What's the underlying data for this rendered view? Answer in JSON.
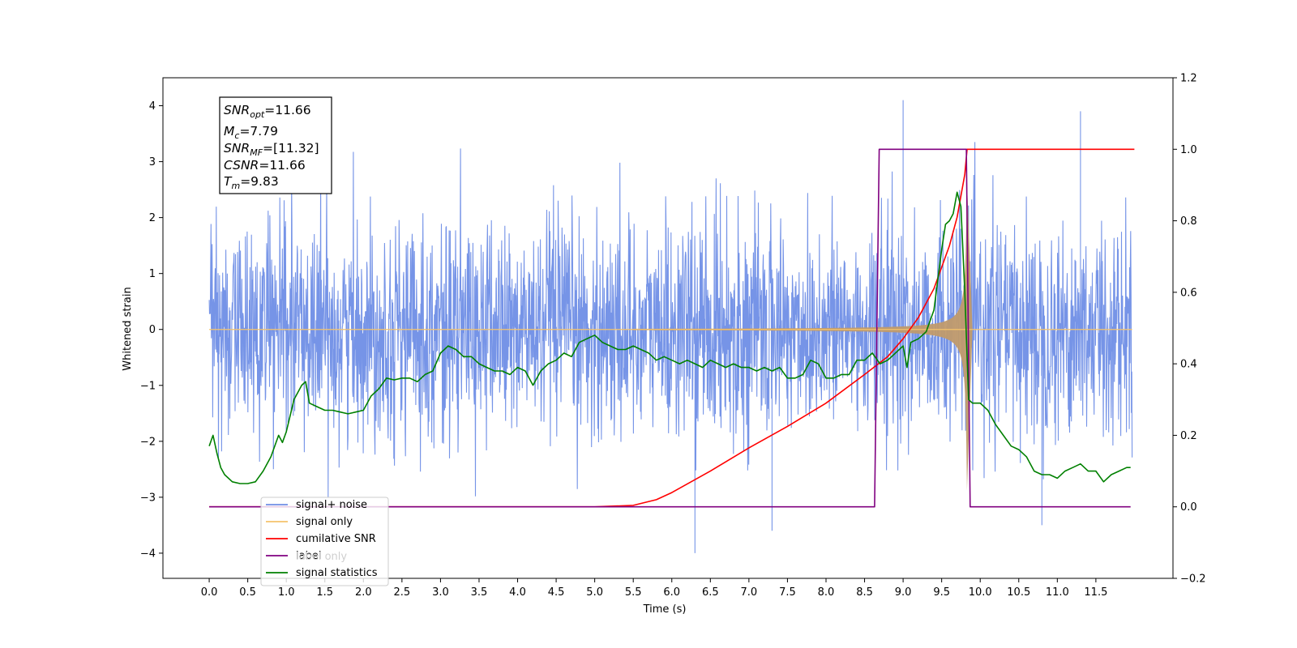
{
  "chart_data": {
    "type": "line",
    "xlabel": "Time (s)",
    "ylabel": "Whitened strain",
    "xlim": [
      -0.6,
      12.5
    ],
    "ylim": [
      -4.45,
      4.5
    ],
    "y2lim": [
      -0.2,
      1.2
    ],
    "x_ticks": [
      "0.0",
      "0.5",
      "1.0",
      "1.5",
      "2.0",
      "2.5",
      "3.0",
      "3.5",
      "4.0",
      "4.5",
      "5.0",
      "5.5",
      "6.0",
      "6.5",
      "7.0",
      "7.5",
      "8.0",
      "8.5",
      "9.0",
      "9.5",
      "10.0",
      "10.5",
      "11.0",
      "11.5"
    ],
    "y_ticks": [
      "4",
      "3",
      "2",
      "1",
      "0",
      "−1",
      "−2",
      "−3",
      "−4"
    ],
    "y2_ticks": [
      "1.2",
      "1.0",
      "0.8",
      "0.6",
      "0.4",
      "0.2",
      "0.0",
      "−0.2"
    ],
    "grid": false,
    "legend_position": "lower-left",
    "colors": {
      "noise": "#6f8ee6",
      "signal": "#f5c36b",
      "signal_fill": "#c09a6b",
      "snr": "#ff0000",
      "label": "#800080",
      "stats": "#008000"
    },
    "annotation": {
      "snr_opt_base": "SNR",
      "snr_opt_sub": "opt",
      "snr_opt_value": "=11.66",
      "mc_base": "M",
      "mc_sub": "c",
      "mc_value": "=7.79",
      "snr_mf_base": "SNR",
      "snr_mf_sub": "MF",
      "snr_mf_value": "=[11.32]",
      "csnr_label": "CSNR",
      "csnr_value": "=11.66",
      "tm_base": "T",
      "tm_sub": "m",
      "tm_value": "=9.83"
    },
    "series": [
      {
        "name": "signal+ noise",
        "axis": "left",
        "noise_envelope": [
          -3.3,
          4.1
        ],
        "spike_points": [
          [
            6.3,
            -4.0
          ],
          [
            9.0,
            4.1
          ],
          [
            11.3,
            3.9
          ],
          [
            7.3,
            -3.6
          ],
          [
            10.8,
            -3.5
          ]
        ]
      },
      {
        "name": "signal only",
        "axis": "left",
        "chirp_start": 5.5,
        "chirp_end": 9.82,
        "peak_amplitude": 3.2,
        "ringdown_end": 9.9
      },
      {
        "name": "cumilative SNR",
        "axis": "right",
        "x": [
          0.0,
          5.0,
          5.5,
          5.8,
          6.0,
          6.5,
          7.0,
          7.5,
          8.0,
          8.5,
          8.8,
          9.0,
          9.2,
          9.4,
          9.6,
          9.7,
          9.8,
          9.83,
          12.0
        ],
        "y": [
          0.0,
          0.0,
          0.004,
          0.02,
          0.04,
          0.1,
          0.165,
          0.225,
          0.29,
          0.37,
          0.42,
          0.47,
          0.53,
          0.61,
          0.73,
          0.81,
          0.93,
          1.0,
          1.0
        ]
      },
      {
        "name": "label",
        "axis": "right",
        "x": [
          0.0,
          8.63,
          8.69,
          9.82,
          9.87,
          11.95
        ],
        "y": [
          0.0,
          0.0,
          1.0,
          1.0,
          0.0,
          0.0
        ]
      },
      {
        "name": "label only",
        "axis": "right"
      },
      {
        "name": "signal statistics",
        "axis": "right",
        "x": [
          0.0,
          0.05,
          0.1,
          0.15,
          0.2,
          0.3,
          0.4,
          0.5,
          0.6,
          0.7,
          0.8,
          0.9,
          0.95,
          1.0,
          1.1,
          1.2,
          1.25,
          1.3,
          1.4,
          1.5,
          1.6,
          1.7,
          1.8,
          1.9,
          2.0,
          2.1,
          2.2,
          2.3,
          2.4,
          2.5,
          2.6,
          2.7,
          2.8,
          2.9,
          3.0,
          3.05,
          3.1,
          3.2,
          3.3,
          3.4,
          3.5,
          3.6,
          3.7,
          3.8,
          3.9,
          4.0,
          4.1,
          4.2,
          4.3,
          4.4,
          4.5,
          4.6,
          4.7,
          4.8,
          4.9,
          5.0,
          5.1,
          5.2,
          5.3,
          5.4,
          5.5,
          5.6,
          5.7,
          5.8,
          5.9,
          6.0,
          6.1,
          6.2,
          6.3,
          6.4,
          6.5,
          6.6,
          6.7,
          6.8,
          6.9,
          7.0,
          7.1,
          7.2,
          7.3,
          7.4,
          7.5,
          7.6,
          7.7,
          7.8,
          7.9,
          8.0,
          8.1,
          8.2,
          8.3,
          8.4,
          8.5,
          8.6,
          8.7,
          8.8,
          8.9,
          9.0,
          9.05,
          9.1,
          9.2,
          9.3,
          9.4,
          9.5,
          9.55,
          9.6,
          9.65,
          9.7,
          9.75,
          9.8,
          9.85,
          9.9,
          10.0,
          10.1,
          10.2,
          10.3,
          10.4,
          10.5,
          10.6,
          10.7,
          10.8,
          10.9,
          11.0,
          11.1,
          11.2,
          11.3,
          11.4,
          11.5,
          11.6,
          11.7,
          11.8,
          11.9,
          11.95
        ],
        "y": [
          0.17,
          0.2,
          0.15,
          0.11,
          0.09,
          0.07,
          0.065,
          0.065,
          0.07,
          0.1,
          0.14,
          0.2,
          0.18,
          0.21,
          0.3,
          0.34,
          0.35,
          0.29,
          0.28,
          0.27,
          0.27,
          0.265,
          0.26,
          0.265,
          0.27,
          0.31,
          0.33,
          0.36,
          0.355,
          0.36,
          0.36,
          0.35,
          0.37,
          0.38,
          0.43,
          0.44,
          0.45,
          0.44,
          0.42,
          0.42,
          0.4,
          0.39,
          0.38,
          0.38,
          0.37,
          0.39,
          0.38,
          0.34,
          0.38,
          0.4,
          0.41,
          0.43,
          0.42,
          0.46,
          0.47,
          0.48,
          0.46,
          0.45,
          0.44,
          0.44,
          0.45,
          0.44,
          0.43,
          0.41,
          0.42,
          0.41,
          0.4,
          0.41,
          0.4,
          0.39,
          0.41,
          0.4,
          0.39,
          0.4,
          0.39,
          0.39,
          0.38,
          0.39,
          0.38,
          0.39,
          0.36,
          0.36,
          0.37,
          0.41,
          0.4,
          0.36,
          0.36,
          0.37,
          0.37,
          0.41,
          0.41,
          0.43,
          0.4,
          0.41,
          0.43,
          0.45,
          0.39,
          0.46,
          0.47,
          0.49,
          0.55,
          0.72,
          0.79,
          0.8,
          0.82,
          0.88,
          0.84,
          0.6,
          0.3,
          0.29,
          0.29,
          0.27,
          0.23,
          0.2,
          0.17,
          0.16,
          0.14,
          0.1,
          0.09,
          0.09,
          0.08,
          0.1,
          0.11,
          0.12,
          0.1,
          0.1,
          0.07,
          0.09,
          0.1,
          0.11,
          0.11
        ]
      }
    ]
  }
}
